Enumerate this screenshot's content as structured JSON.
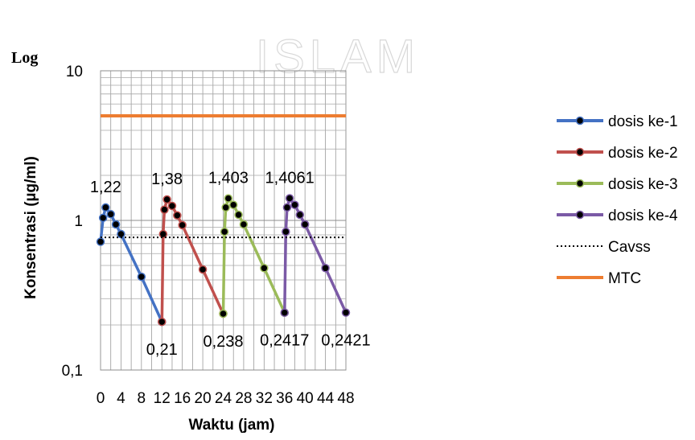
{
  "chart_data": {
    "type": "line",
    "y_scale": "log",
    "ylim": [
      0.1,
      10
    ],
    "xlim": [
      0,
      48
    ],
    "x_ticks": [
      0,
      4,
      8,
      12,
      16,
      20,
      24,
      28,
      32,
      36,
      40,
      44,
      48
    ],
    "x_tick_labels": [
      "0",
      "4",
      "8",
      "12",
      "16",
      "20",
      "24",
      "28",
      "32",
      "36",
      "40",
      "44",
      "48"
    ],
    "y_ticks": [
      0.1,
      1,
      10
    ],
    "y_tick_labels": [
      "0,1",
      "1",
      "10"
    ],
    "xlabel": "Waktu (jam)",
    "ylabel": "Konsentrasi (µg/ml)",
    "y_scale_label": "Log",
    "grid": true,
    "legend_position": "right",
    "watermark": "ISLAM",
    "series": [
      {
        "name": "dosis ke-1",
        "color": "#4472C4",
        "marker": "circle",
        "points": [
          [
            0,
            0.72
          ],
          [
            0.5,
            1.04
          ],
          [
            1,
            1.22
          ],
          [
            2,
            1.1
          ],
          [
            3,
            0.94
          ],
          [
            4,
            0.81
          ],
          [
            8,
            0.42
          ],
          [
            12,
            0.21
          ]
        ]
      },
      {
        "name": "dosis ke-2",
        "color": "#C0504D",
        "marker": "circle",
        "points": [
          [
            12,
            0.21
          ],
          [
            12.25,
            0.81
          ],
          [
            12.5,
            1.18
          ],
          [
            13,
            1.38
          ],
          [
            14,
            1.25
          ],
          [
            15,
            1.08
          ],
          [
            16,
            0.93
          ],
          [
            20,
            0.47
          ],
          [
            24,
            0.238
          ]
        ]
      },
      {
        "name": "dosis ke-3",
        "color": "#9BBB59",
        "marker": "circle",
        "points": [
          [
            24,
            0.238
          ],
          [
            24.25,
            0.84
          ],
          [
            24.5,
            1.22
          ],
          [
            25,
            1.403
          ],
          [
            26,
            1.27
          ],
          [
            27,
            1.09
          ],
          [
            28,
            0.94
          ],
          [
            32,
            0.48
          ],
          [
            36,
            0.2417
          ]
        ]
      },
      {
        "name": "dosis ke-4",
        "color": "#7B5AA6",
        "marker": "circle",
        "points": [
          [
            36,
            0.2417
          ],
          [
            36.25,
            0.84
          ],
          [
            36.5,
            1.22
          ],
          [
            37,
            1.4061
          ],
          [
            38,
            1.27
          ],
          [
            39,
            1.09
          ],
          [
            40,
            0.94
          ],
          [
            44,
            0.48
          ],
          [
            48,
            0.2421
          ]
        ]
      },
      {
        "name": "Cavss",
        "color": "#000000",
        "style": "dotted",
        "points": [
          [
            0,
            0.77
          ],
          [
            48,
            0.77
          ]
        ]
      },
      {
        "name": "MTC",
        "color": "#ED7D31",
        "style": "solid",
        "points": [
          [
            0,
            5
          ],
          [
            48,
            5
          ]
        ]
      }
    ],
    "annotations": [
      {
        "text": "1,22",
        "x": 1,
        "y": 1.22,
        "pos": "above"
      },
      {
        "text": "1,38",
        "x": 13,
        "y": 1.38,
        "pos": "above"
      },
      {
        "text": "1,403",
        "x": 25,
        "y": 1.403,
        "pos": "above"
      },
      {
        "text": "1,4061",
        "x": 37,
        "y": 1.4061,
        "pos": "above"
      },
      {
        "text": "0,21",
        "x": 12,
        "y": 0.21,
        "pos": "below"
      },
      {
        "text": "0,238",
        "x": 24,
        "y": 0.238,
        "pos": "below"
      },
      {
        "text": "0,2417",
        "x": 36,
        "y": 0.2417,
        "pos": "below"
      },
      {
        "text": "0,2421",
        "x": 48,
        "y": 0.2421,
        "pos": "below"
      }
    ]
  }
}
